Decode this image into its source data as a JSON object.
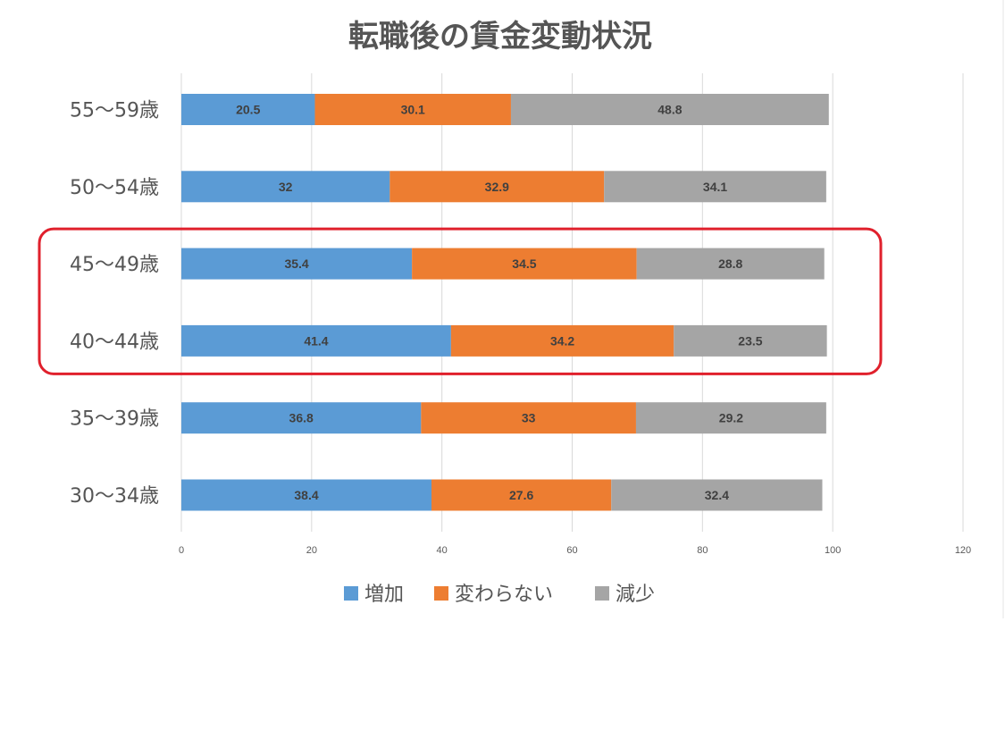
{
  "chart_data": {
    "type": "bar",
    "orientation": "horizontal",
    "stacked": true,
    "title": "転職後の賃金変動状況",
    "categories": [
      "55〜59歳",
      "50〜54歳",
      "45〜49歳",
      "40〜44歳",
      "35〜39歳",
      "30〜34歳"
    ],
    "series": [
      {
        "name": "増加",
        "color": "#5B9BD5",
        "values": [
          20.5,
          32,
          35.4,
          41.4,
          36.8,
          38.4
        ]
      },
      {
        "name": "変わらない",
        "color": "#ED7D31",
        "values": [
          30.1,
          32.9,
          34.5,
          34.2,
          33,
          27.6
        ]
      },
      {
        "name": "減少",
        "color": "#A5A5A5",
        "values": [
          48.8,
          34.1,
          28.8,
          23.5,
          29.2,
          32.4
        ]
      }
    ],
    "xlim": [
      0,
      120
    ],
    "x_ticks": [
      0,
      20,
      40,
      60,
      80,
      100,
      120
    ],
    "grid": "vertical",
    "legend_position": "bottom",
    "highlight": {
      "categories": [
        "45〜49歳",
        "40〜44歳"
      ],
      "color": "#E0202C"
    }
  }
}
